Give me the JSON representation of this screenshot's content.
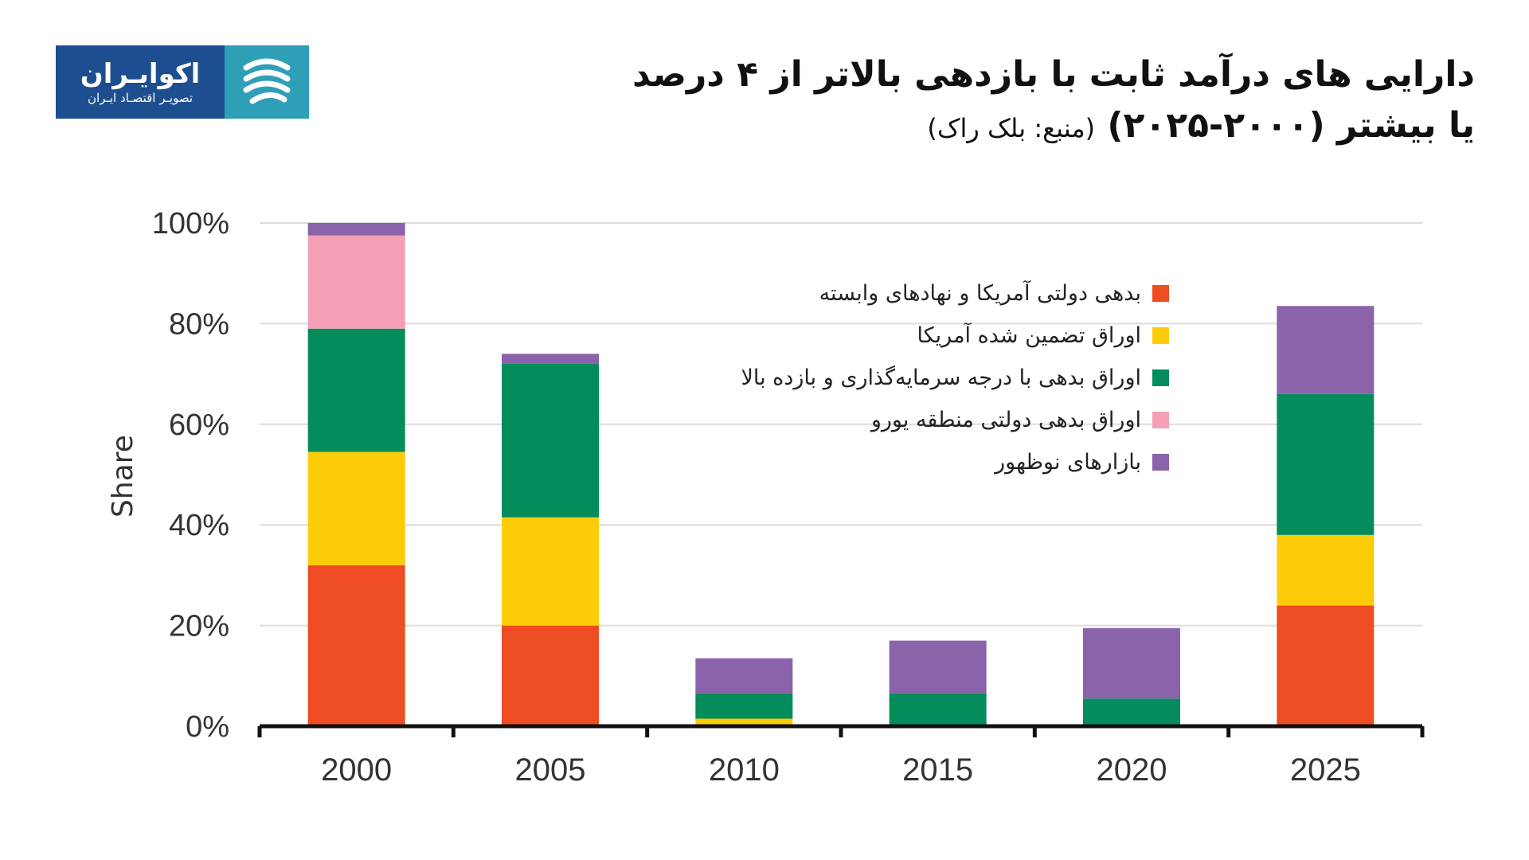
{
  "logo": {
    "name": "اکوایـران",
    "tagline": "تصویـر اقتصـاد ایـران"
  },
  "title": {
    "line1": "دارایی های درآمد ثابت با بازدهی بالاتر از ۴ درصد",
    "line2": "یا بیشتر (۲۰۰۰-۲۰۲۵)",
    "source": "(منبع: بلک راک)"
  },
  "chart_data": {
    "type": "bar",
    "stacked": true,
    "categories": [
      "2000",
      "2005",
      "2010",
      "2015",
      "2020",
      "2025"
    ],
    "ylabel": "Share",
    "ylim": [
      0,
      100
    ],
    "yticks": [
      "0%",
      "20%",
      "40%",
      "60%",
      "80%",
      "100%"
    ],
    "ytick_values": [
      0,
      20,
      40,
      60,
      80,
      100
    ],
    "grid": true,
    "legend_position": "top-right",
    "series": [
      {
        "name": "بدهی دولتی آمریکا و نهادهای وابسته",
        "color": "#ee4c23",
        "values": [
          32,
          20,
          0,
          0,
          0,
          24
        ]
      },
      {
        "name": "اوراق تضمین شده آمریکا",
        "color": "#fdcc09",
        "values": [
          22.5,
          21.5,
          1.5,
          0,
          0,
          14
        ]
      },
      {
        "name": "اوراق بدهی با درجه سرمایه‌گذاری و بازده بالا",
        "color": "#058c5b",
        "values": [
          24.5,
          30.5,
          5,
          6.5,
          5.5,
          28
        ]
      },
      {
        "name": "اوراق بدهی دولتی منطقه یورو",
        "color": "#f49fb6",
        "values": [
          18.5,
          0,
          0,
          0,
          0,
          0
        ]
      },
      {
        "name": "بازارهای نوظهور",
        "color": "#8b63ab",
        "values": [
          2.5,
          2,
          7,
          10.5,
          14,
          17.5
        ]
      }
    ]
  }
}
